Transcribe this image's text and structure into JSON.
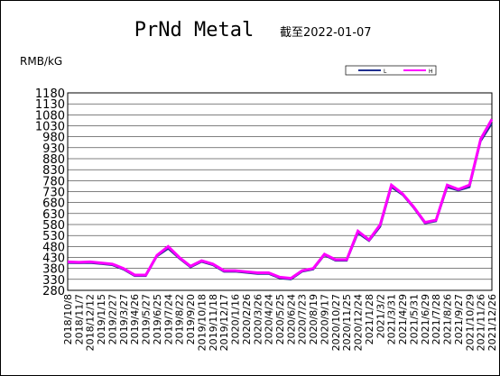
{
  "chart_data": {
    "type": "line",
    "title": "PrNd Metal",
    "subtitle": "截至2022-01-07",
    "y_label": "RMB/kG",
    "categories": [
      "2018/10/8",
      "2018/11/7",
      "2018/12/12",
      "2019/1/15",
      "2019/2/27",
      "2019/3/27",
      "2019/4/26",
      "2019/5/27",
      "2019/6/25",
      "2019/7/24",
      "2019/8/22",
      "2019/9/20",
      "2019/10/18",
      "2019/11/18",
      "2019/12/17",
      "2020/1/16",
      "2020/2/26",
      "2020/3/26",
      "2020/4/24",
      "2020/5/25",
      "2020/6/24",
      "2020/7/23",
      "2020/8/19",
      "2020/9/17",
      "2020/10/27",
      "2020/11/25",
      "2020/12/24",
      "2021/1/28",
      "2021/3/2",
      "2021/3/31",
      "2021/4/29",
      "2021/5/31",
      "2021/6/29",
      "2021/7/28",
      "2021/8/26",
      "2021/9/27",
      "2021/10/29",
      "2021/11/26",
      "2021/12/26"
    ],
    "series": [
      {
        "name": "L",
        "color": "#1f2f8f",
        "values": [
          405,
          404,
          405,
          400,
          395,
          375,
          345,
          345,
          435,
          470,
          425,
          385,
          410,
          395,
          365,
          365,
          360,
          355,
          355,
          335,
          330,
          365,
          375,
          440,
          415,
          415,
          540,
          505,
          570,
          750,
          715,
          655,
          585,
          595,
          750,
          735,
          750,
          960,
          1040
        ]
      },
      {
        "name": "H",
        "color": "#ff00ff",
        "values": [
          410,
          408,
          410,
          405,
          400,
          380,
          350,
          350,
          440,
          480,
          430,
          390,
          415,
          400,
          370,
          370,
          365,
          360,
          360,
          340,
          335,
          370,
          380,
          445,
          420,
          420,
          550,
          510,
          580,
          760,
          720,
          660,
          590,
          600,
          760,
          740,
          760,
          970,
          1060
        ]
      }
    ],
    "ylim": [
      280,
      1180
    ],
    "yticks": [
      280,
      330,
      380,
      430,
      480,
      530,
      580,
      630,
      680,
      730,
      780,
      830,
      880,
      930,
      980,
      1030,
      1080,
      1130,
      1180
    ],
    "grid": true
  }
}
